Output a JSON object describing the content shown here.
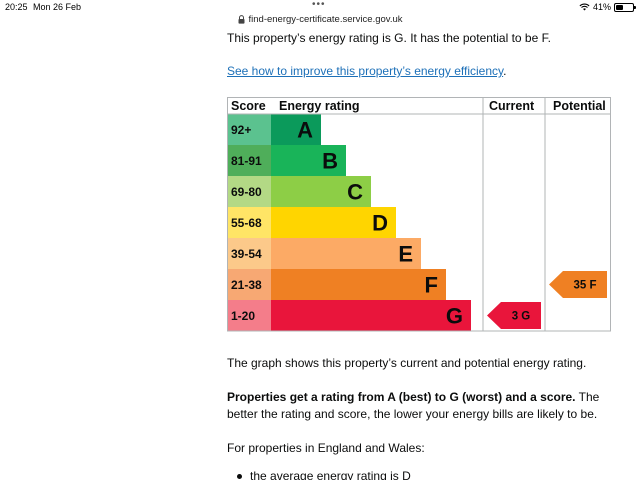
{
  "status_bar": {
    "time": "20:25",
    "date": "Mon 26 Feb",
    "battery": "41%",
    "battery_level": 0.41
  },
  "url_bar": {
    "url": "find-energy-certificate.service.gov.uk"
  },
  "content": {
    "intro": "This property’s energy rating is G. It has the potential to be F.",
    "improve_link": "See how to improve this property’s energy efficiency",
    "improve_link_suffix": ".",
    "graph_note": "The graph shows this property’s current and potential energy rating.",
    "bold_lead": "Properties get a rating from A (best) to G (worst) and a score.",
    "bold_rest": " The better the rating and score, the lower your energy bills are likely to be.",
    "england": "For properties in England and Wales:",
    "bullet": "the average energy rating is D"
  },
  "chart_data": {
    "type": "table",
    "headers": [
      "Score",
      "Energy rating",
      "Current",
      "Potential"
    ],
    "bands": [
      {
        "score": "92+",
        "rating": "A",
        "color": "#5bc28f",
        "bar_color": "#0b9a5b"
      },
      {
        "score": "81-91",
        "rating": "B",
        "color": "#4fae5a",
        "bar_color": "#19b459"
      },
      {
        "score": "69-80",
        "rating": "C",
        "color": "#b3d985",
        "bar_color": "#8dce46"
      },
      {
        "score": "55-68",
        "rating": "D",
        "color": "#ffe566",
        "bar_color": "#ffd500"
      },
      {
        "score": "39-54",
        "rating": "E",
        "color": "#fcc98a",
        "bar_color": "#fcaa65"
      },
      {
        "score": "21-38",
        "rating": "F",
        "color": "#f7a873",
        "bar_color": "#ef8023"
      },
      {
        "score": "1-20",
        "rating": "G",
        "color": "#f47d8a",
        "bar_color": "#e9153b"
      }
    ],
    "current": {
      "score": 3,
      "rating": "G",
      "label": "3  G",
      "color": "#e9153b"
    },
    "potential": {
      "score": 35,
      "rating": "F",
      "label": "35  F",
      "color": "#ef8023"
    }
  }
}
